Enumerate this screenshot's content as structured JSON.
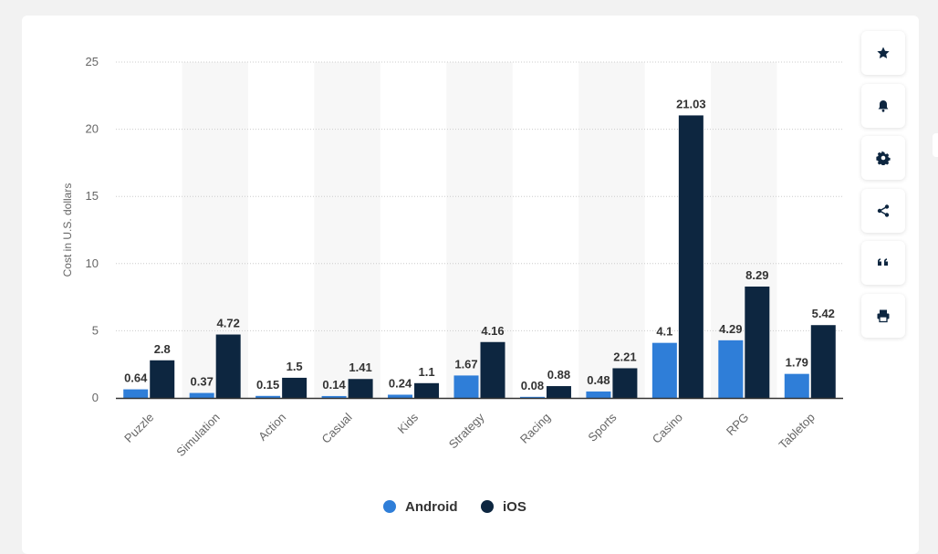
{
  "chart_data": {
    "type": "bar",
    "title": "",
    "ylabel": "Cost in U.S. dollars",
    "xlabel": "",
    "ylim": [
      0,
      25
    ],
    "yticks": [
      0,
      5,
      10,
      15,
      20,
      25
    ],
    "categories": [
      "Puzzle",
      "Simulation",
      "Action",
      "Casual",
      "Kids",
      "Strategy",
      "Racing",
      "Sports",
      "Casino",
      "RPG",
      "Tabletop"
    ],
    "series": [
      {
        "name": "Android",
        "color": "#2f7ed8",
        "values": [
          0.64,
          0.37,
          0.15,
          0.14,
          0.24,
          1.67,
          0.08,
          0.48,
          4.1,
          4.29,
          1.79
        ]
      },
      {
        "name": "iOS",
        "color": "#0d2640",
        "values": [
          2.8,
          4.72,
          1.5,
          1.41,
          1.1,
          4.16,
          0.88,
          2.21,
          21.03,
          8.29,
          5.42
        ]
      }
    ],
    "legend_position": "bottom-center"
  },
  "toolbar": {
    "icons": [
      "star-icon",
      "bell-icon",
      "gear-icon",
      "share-icon",
      "quote-icon",
      "print-icon"
    ]
  }
}
